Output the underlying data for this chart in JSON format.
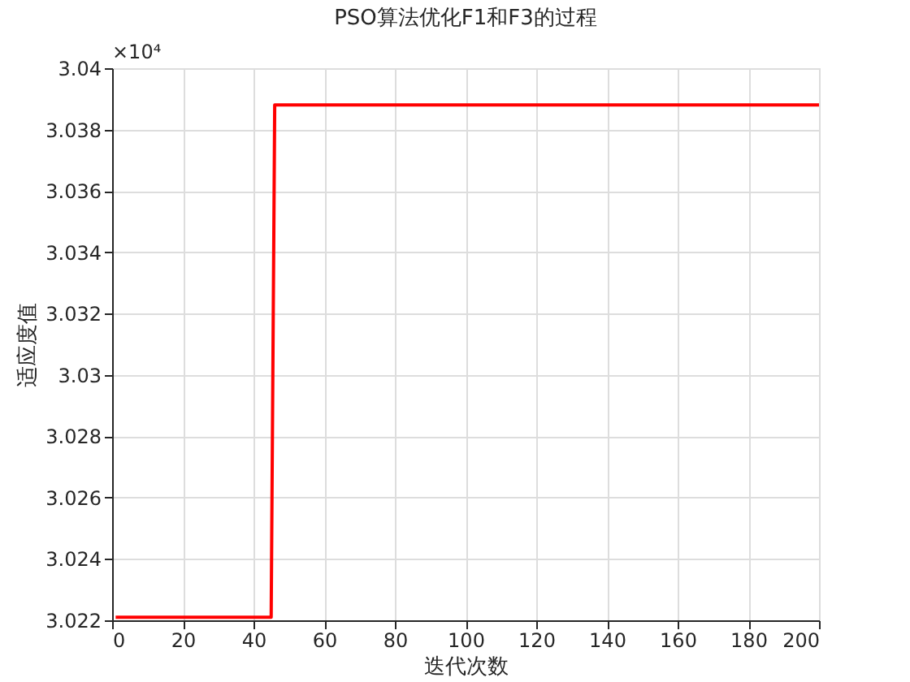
{
  "chart_data": {
    "type": "line",
    "title": "PSO算法优化F1和F3的过程",
    "xlabel": "迭代次数",
    "ylabel": "适应度值",
    "x": [
      1,
      45,
      46,
      200
    ],
    "series": [
      {
        "color": "#ff0000",
        "values": [
          3.0221,
          3.0221,
          3.0388,
          3.0388
        ]
      }
    ],
    "xlim": [
      0,
      200
    ],
    "xticks": [
      0,
      20,
      40,
      60,
      80,
      100,
      120,
      140,
      160,
      180,
      200
    ],
    "ylim": [
      3.022,
      3.04
    ],
    "yticks": [
      3.022,
      3.024,
      3.026,
      3.028,
      3.03,
      3.032,
      3.034,
      3.036,
      3.038,
      3.04
    ],
    "annotations": [
      "×10⁴"
    ],
    "grid": true,
    "marker": "none",
    "line_style": "solid"
  }
}
